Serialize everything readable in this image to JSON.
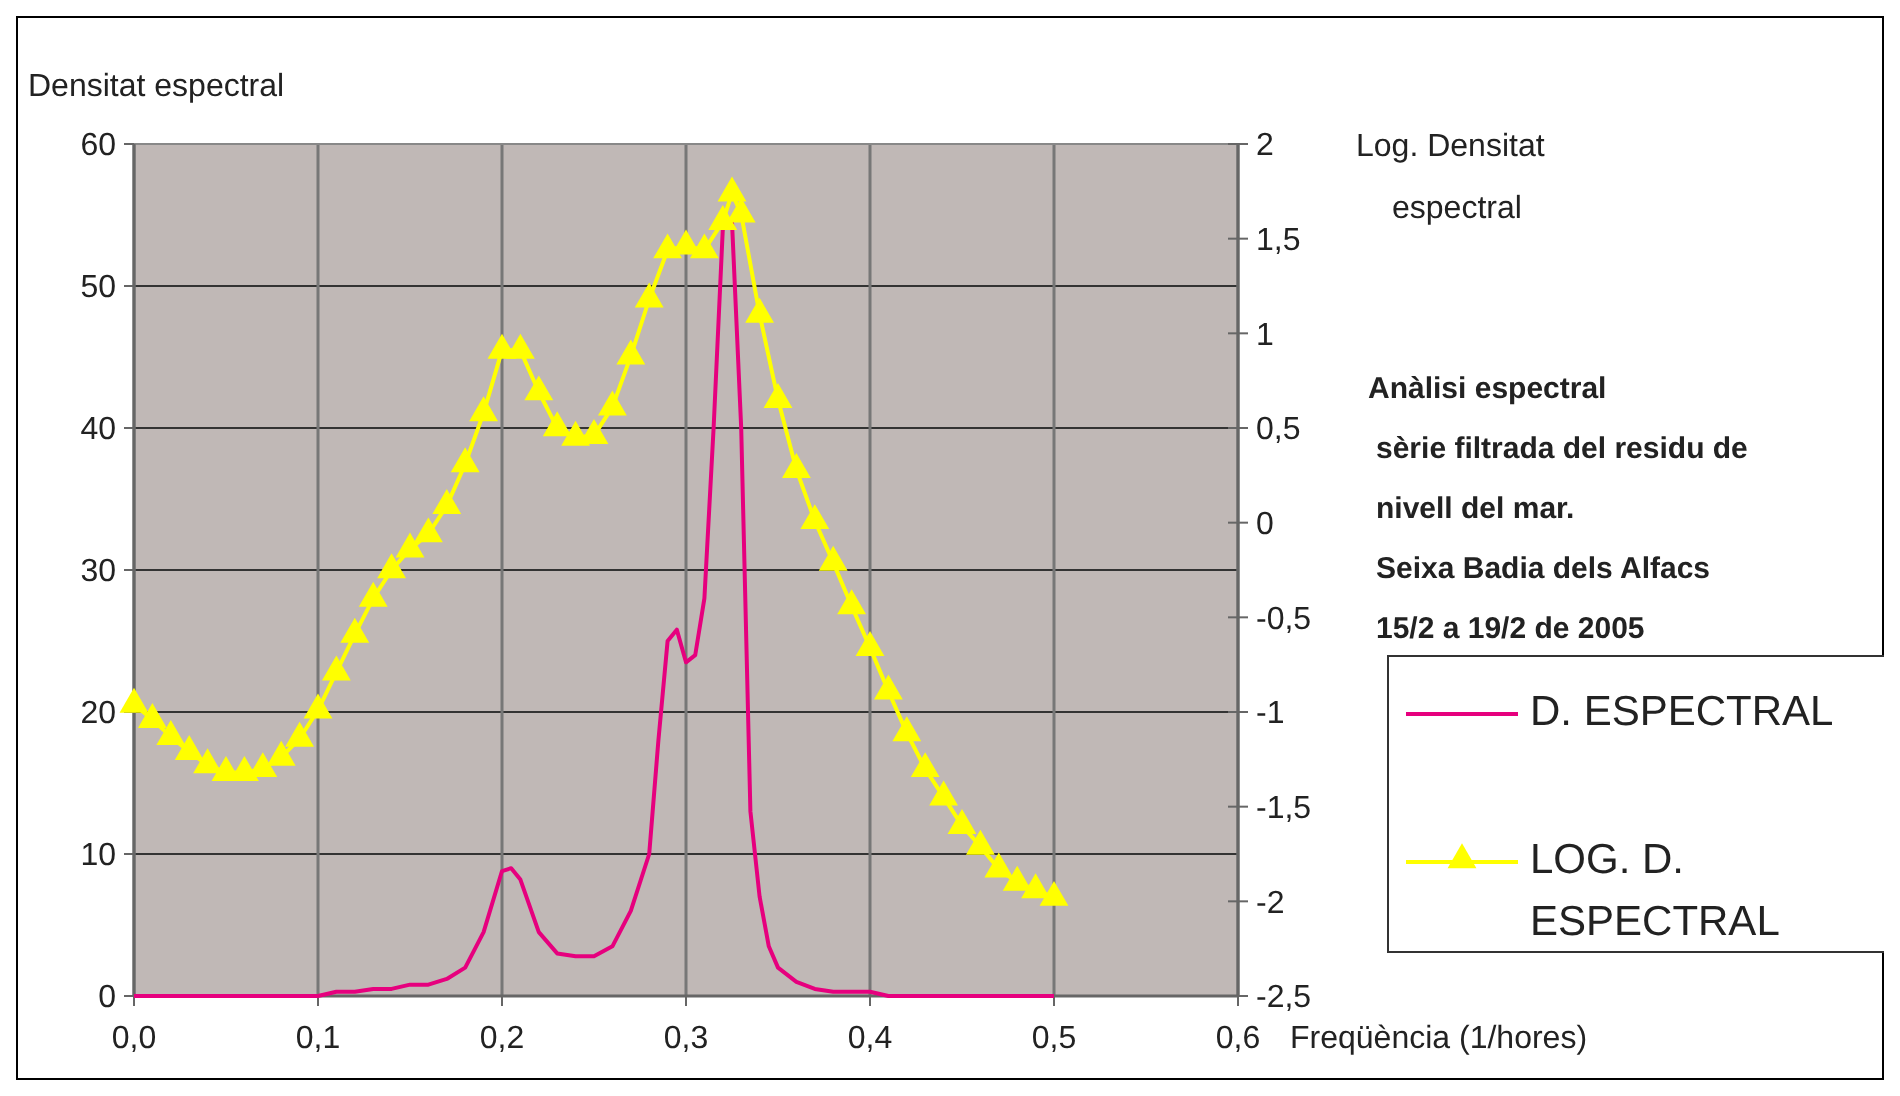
{
  "chart_data": {
    "type": "line",
    "xlabel": "Freqüència (1/hores)",
    "ylabel": "Densitat espectral",
    "y2label": "Log. Densitat espectral",
    "xlim": [
      0,
      0.6
    ],
    "xticks": [
      {
        "value": 0,
        "label": "0,0"
      },
      {
        "value": 0.1,
        "label": "0,1"
      },
      {
        "value": 0.2,
        "label": "0,2"
      },
      {
        "value": 0.3,
        "label": "0,3"
      },
      {
        "value": 0.4,
        "label": "0,4"
      },
      {
        "value": 0.5,
        "label": "0,5"
      },
      {
        "value": 0.6,
        "label": "0,6"
      }
    ],
    "ylim": [
      0,
      60
    ],
    "yticks": [
      0,
      10,
      20,
      30,
      40,
      50,
      60
    ],
    "y2lim": [
      -2.5,
      2
    ],
    "y2ticks": [
      {
        "value": -2.5,
        "label": "-2,5"
      },
      -2,
      {
        "value": -1.5,
        "label": "-1,5"
      },
      -1,
      {
        "value": -0.5,
        "label": "-0,5"
      },
      0,
      {
        "value": 0.5,
        "label": "0,5"
      },
      1,
      {
        "value": 1.5,
        "label": "1,5"
      },
      2
    ],
    "grid": true,
    "legend": "right",
    "annotations": [
      "Anàlisi espectral",
      "sèrie filtrada del residu de",
      "nivell del mar.",
      "Seixa Badia dels Alfacs",
      "15/2 a 19/2 de 2005"
    ],
    "series": [
      {
        "name": "D. ESPECTRAL",
        "color": "#e6007e",
        "marker": "none",
        "x": [
          0,
          0.1,
          0.11,
          0.12,
          0.13,
          0.14,
          0.15,
          0.16,
          0.17,
          0.18,
          0.19,
          0.2,
          0.205,
          0.21,
          0.22,
          0.23,
          0.24,
          0.25,
          0.26,
          0.27,
          0.28,
          0.285,
          0.29,
          0.295,
          0.3,
          0.305,
          0.31,
          0.315,
          0.32,
          0.325,
          0.33,
          0.335,
          0.34,
          0.345,
          0.35,
          0.36,
          0.37,
          0.38,
          0.39,
          0.4,
          0.41,
          0.5
        ],
        "values": [
          0,
          0,
          0.3,
          0.3,
          0.5,
          0.5,
          0.8,
          0.8,
          1.2,
          2,
          4.5,
          8.8,
          9,
          8.2,
          4.5,
          3,
          2.8,
          2.8,
          3.5,
          6,
          10,
          18,
          25,
          25.8,
          23.5,
          24,
          28,
          40,
          54,
          54.5,
          40,
          13,
          7,
          3.5,
          2,
          1,
          0.5,
          0.3,
          0.3,
          0.3,
          0,
          0
        ]
      },
      {
        "name": "LOG. D. ESPECTRAL",
        "color": "#ffff00",
        "marker": "triangle",
        "axis": "y2",
        "x": [
          0,
          0.01,
          0.02,
          0.03,
          0.04,
          0.05,
          0.06,
          0.07,
          0.08,
          0.09,
          0.1,
          0.11,
          0.12,
          0.13,
          0.14,
          0.15,
          0.16,
          0.17,
          0.18,
          0.19,
          0.2,
          0.21,
          0.22,
          0.23,
          0.24,
          0.25,
          0.26,
          0.27,
          0.28,
          0.29,
          0.3,
          0.31,
          0.32,
          0.325,
          0.33,
          0.34,
          0.35,
          0.36,
          0.37,
          0.38,
          0.39,
          0.4,
          0.41,
          0.42,
          0.43,
          0.44,
          0.45,
          0.46,
          0.47,
          0.48,
          0.49,
          0.5
        ],
        "values": [
          -0.96,
          -1.04,
          -1.13,
          -1.21,
          -1.28,
          -1.32,
          -1.32,
          -1.3,
          -1.24,
          -1.14,
          -0.99,
          -0.79,
          -0.59,
          -0.4,
          -0.25,
          -0.14,
          -0.06,
          0.09,
          0.31,
          0.58,
          0.91,
          0.91,
          0.69,
          0.5,
          0.45,
          0.46,
          0.61,
          0.88,
          1.18,
          1.44,
          1.46,
          1.44,
          1.59,
          1.74,
          1.63,
          1.1,
          0.65,
          0.28,
          0.01,
          -0.21,
          -0.44,
          -0.66,
          -0.89,
          -1.11,
          -1.3,
          -1.45,
          -1.6,
          -1.71,
          -1.83,
          -1.9,
          -1.94,
          -1.98
        ]
      }
    ]
  }
}
